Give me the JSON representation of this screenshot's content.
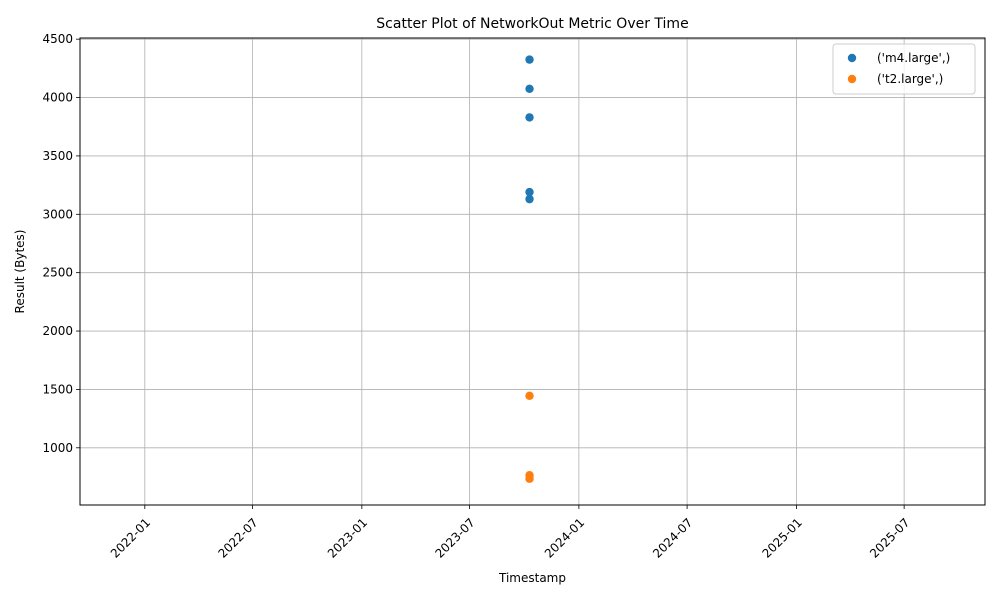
{
  "chart_data": {
    "type": "scatter",
    "title": "Scatter Plot of NetworkOut Metric Over Time",
    "xlabel": "Timestamp",
    "ylabel": "Result (Bytes)",
    "x_axis_type": "date",
    "xlim": [
      "2021-09-14",
      "2025-11-14"
    ],
    "ylim": [
      510,
      4510
    ],
    "x_ticks": [
      "2022-01",
      "2022-07",
      "2023-01",
      "2023-07",
      "2024-01",
      "2024-07",
      "2025-01",
      "2025-07"
    ],
    "y_ticks": [
      1000,
      1500,
      2000,
      2500,
      3000,
      3500,
      4000,
      4500
    ],
    "x_tick_rotation": 45,
    "grid": true,
    "legend_position": "top-right",
    "series": [
      {
        "name": "('m4.large',)",
        "color": "#1f77b4",
        "points": [
          {
            "x": "2023-10-10",
            "y": 4325
          },
          {
            "x": "2023-10-10",
            "y": 4075
          },
          {
            "x": "2023-10-10",
            "y": 3830
          },
          {
            "x": "2023-10-10",
            "y": 3190
          },
          {
            "x": "2023-10-10",
            "y": 3130
          }
        ]
      },
      {
        "name": "('t2.large',)",
        "color": "#ff7f0e",
        "points": [
          {
            "x": "2023-10-10",
            "y": 1445
          },
          {
            "x": "2023-10-10",
            "y": 765
          },
          {
            "x": "2023-10-10",
            "y": 735
          }
        ]
      }
    ]
  }
}
